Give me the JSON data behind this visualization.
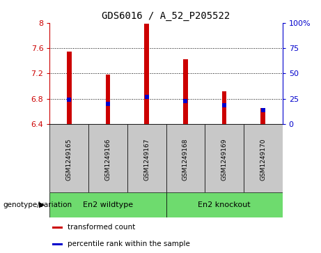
{
  "title": "GDS6016 / A_52_P205522",
  "samples": [
    "GSM1249165",
    "GSM1249166",
    "GSM1249167",
    "GSM1249168",
    "GSM1249169",
    "GSM1249170"
  ],
  "transformed_counts": [
    7.55,
    7.18,
    7.98,
    7.42,
    6.92,
    6.65
  ],
  "percentile_values": [
    6.78,
    6.72,
    6.83,
    6.76,
    6.7,
    6.62
  ],
  "base_value": 6.4,
  "ylim": [
    6.4,
    8.0
  ],
  "yticks": [
    6.4,
    6.8,
    7.2,
    7.6,
    8.0
  ],
  "right_ytick_labels": [
    "0",
    "25",
    "50",
    "75",
    "100%"
  ],
  "right_ytick_positions": [
    6.4,
    6.8,
    7.2,
    7.6,
    8.0
  ],
  "grid_lines": [
    6.8,
    7.2,
    7.6
  ],
  "groups": [
    {
      "label": "En2 wildtype",
      "indices": [
        0,
        1,
        2
      ],
      "color": "#6edb6e"
    },
    {
      "label": "En2 knockout",
      "indices": [
        3,
        4,
        5
      ],
      "color": "#6edb6e"
    }
  ],
  "sample_box_color": "#c8c8c8",
  "bar_color": "#cc0000",
  "percentile_color": "#0000cc",
  "left_axis_color": "#cc0000",
  "right_axis_color": "#0000cc",
  "bar_width": 0.12,
  "legend_items": [
    {
      "label": "transformed count",
      "color": "#cc0000"
    },
    {
      "label": "percentile rank within the sample",
      "color": "#0000cc"
    }
  ],
  "genotype_label": "genotype/variation"
}
